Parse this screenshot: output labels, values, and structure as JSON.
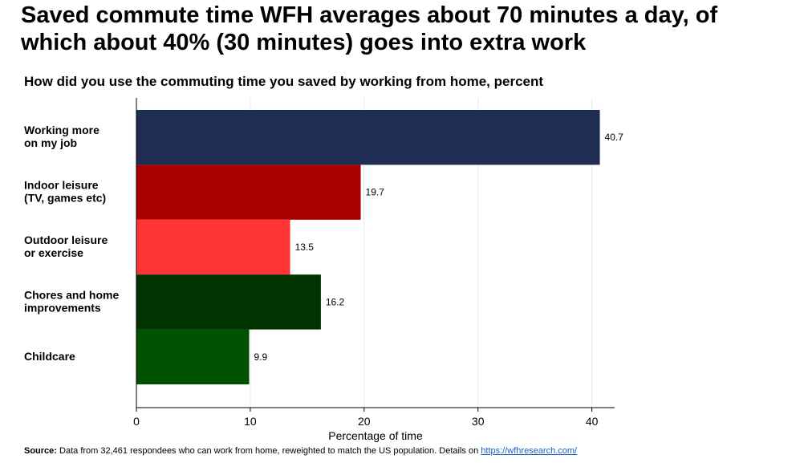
{
  "headline_line1": "Saved commute time WFH averages about 70 minutes a day, of",
  "headline_line2": "which about 40% (30 minutes) goes into extra work",
  "chart_data": {
    "type": "bar",
    "orientation": "horizontal",
    "title": "How did you use the commuting time you saved by working from home, percent",
    "xlabel": "Percentage of time",
    "ylabel": "",
    "xlim": [
      0,
      42
    ],
    "xticks": [
      0,
      10,
      20,
      30,
      40
    ],
    "grid": true,
    "categories": [
      [
        "Working more",
        "on my job"
      ],
      [
        "Indoor leisure",
        "(TV, games etc)"
      ],
      [
        "Outdoor leisure",
        "or exercise"
      ],
      [
        "Chores and home",
        "improvements"
      ],
      [
        "Childcare"
      ]
    ],
    "values": [
      40.7,
      19.7,
      13.5,
      16.2,
      9.9
    ],
    "value_labels": [
      "40.7",
      "19.7",
      "13.5",
      "16.2",
      "9.9"
    ],
    "colors": [
      "#1f2d52",
      "#a80000",
      "#ff3535",
      "#003300",
      "#005200"
    ]
  },
  "source": {
    "label": "Source:",
    "text": " Data from 32,461 respondees who can work from home, reweighted to match the US population. Details on ",
    "link": "https://wfhresearch.com/"
  }
}
